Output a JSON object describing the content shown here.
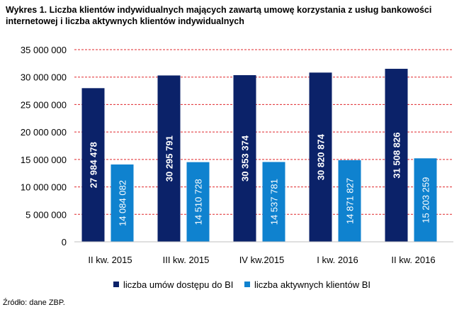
{
  "chart_data": {
    "type": "bar",
    "title": "Wykres 1. Liczba klientów indywidualnych mających zawartą umowę korzystania z usług bankowości internetowej i liczba aktywnych klientów indywidualnych",
    "categories": [
      "II kw. 2015",
      "III kw. 2015",
      "IV kw.2015",
      "I kw. 2016",
      "II kw. 2016"
    ],
    "series": [
      {
        "name": "liczba umów dostępu do BI",
        "color": "#0b2269",
        "values": [
          27984478,
          30295791,
          30353374,
          30820874,
          31508826
        ],
        "labels": [
          "27 984 478",
          "30 295 791",
          "30 353 374",
          "30 820 874",
          "31 508 826"
        ]
      },
      {
        "name": "liczba aktywnych klientów BI",
        "color": "#0f82cf",
        "values": [
          14084082,
          14510728,
          14537781,
          14871827,
          15203259
        ],
        "labels": [
          "14 084 082",
          "14 510 728",
          "14 537 781",
          "14 871 827",
          "15 203 259"
        ]
      }
    ],
    "ylim": [
      0,
      35000000
    ],
    "yticks": [
      0,
      5000000,
      10000000,
      15000000,
      20000000,
      25000000,
      30000000,
      35000000
    ],
    "ytick_labels": [
      "0",
      "5 000 000",
      "10 000 000",
      "15 000 000",
      "20 000 000",
      "25 000 000",
      "30 000 000",
      "35 000 000"
    ],
    "grid_color": "#e0282c",
    "legend_position": "bottom",
    "xlabel": "",
    "ylabel": ""
  },
  "source": "Źródło: dane ZBP."
}
